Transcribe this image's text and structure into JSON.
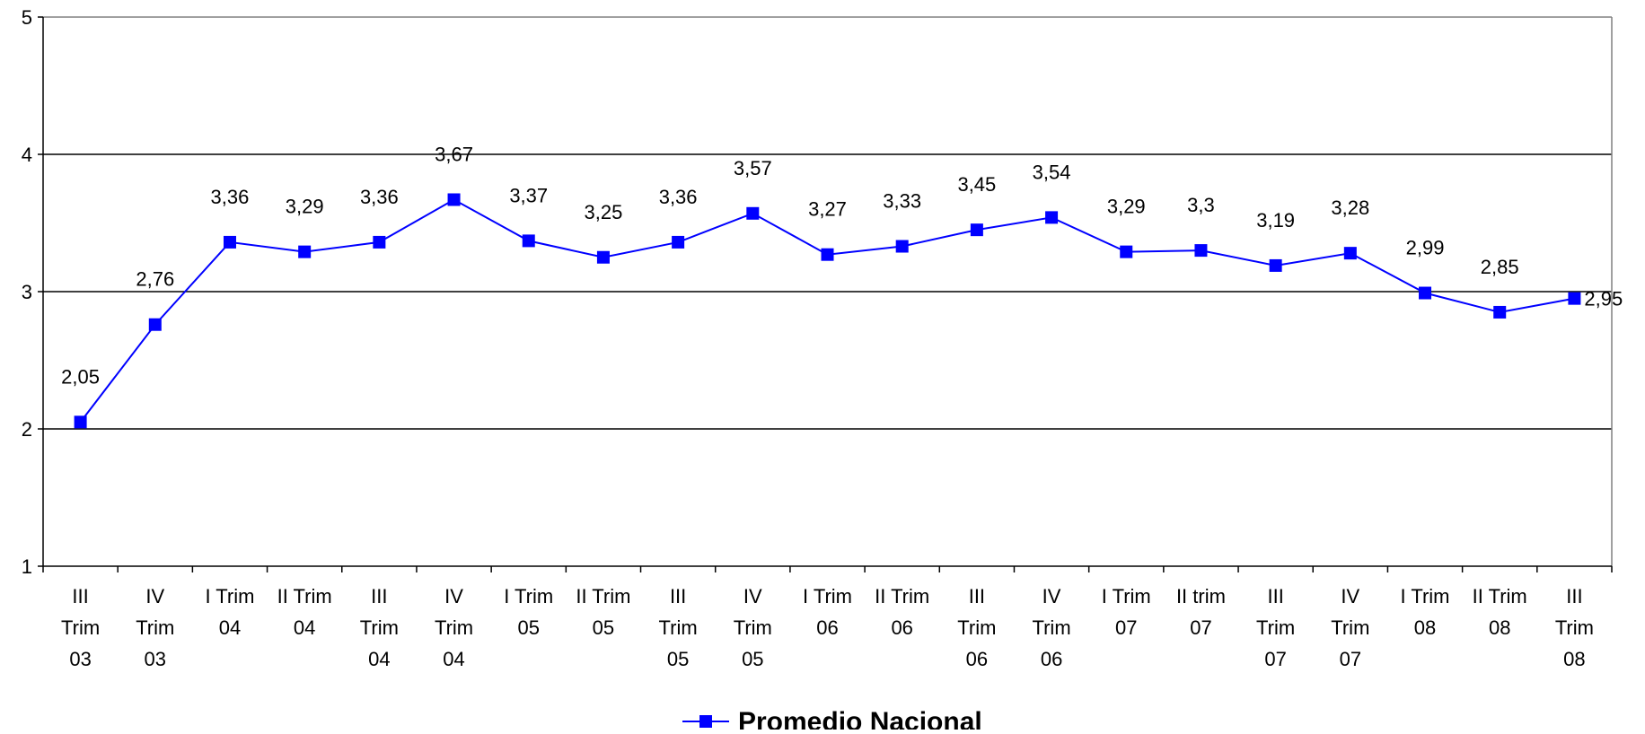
{
  "chart_data": {
    "type": "line",
    "categories": [
      [
        "III",
        "Trim",
        "03"
      ],
      [
        "IV",
        "Trim",
        "03"
      ],
      [
        "I Trim",
        "04"
      ],
      [
        "II Trim",
        "04"
      ],
      [
        "III",
        "Trim",
        "04"
      ],
      [
        "IV",
        "Trim",
        "04"
      ],
      [
        "I Trim",
        "05"
      ],
      [
        "II Trim",
        "05"
      ],
      [
        "III",
        "Trim",
        "05"
      ],
      [
        "IV",
        "Trim",
        "05"
      ],
      [
        "I Trim",
        "06"
      ],
      [
        "II Trim",
        "06"
      ],
      [
        "III",
        "Trim",
        "06"
      ],
      [
        "IV",
        "Trim",
        "06"
      ],
      [
        "I Trim",
        "07"
      ],
      [
        "II trim",
        "07"
      ],
      [
        "III",
        "Trim",
        "07"
      ],
      [
        "IV",
        "Trim",
        "07"
      ],
      [
        "I Trim",
        "08"
      ],
      [
        "II Trim",
        "08"
      ],
      [
        "III",
        "Trim",
        "08"
      ]
    ],
    "series": [
      {
        "name": "Promedio Nacional",
        "color": "#0000ff",
        "marker": "square",
        "values": [
          2.05,
          2.76,
          3.36,
          3.29,
          3.36,
          3.67,
          3.37,
          3.25,
          3.36,
          3.57,
          3.27,
          3.33,
          3.45,
          3.54,
          3.29,
          3.3,
          3.19,
          3.28,
          2.99,
          2.85,
          2.95
        ],
        "labels": [
          "2,05",
          "2,76",
          "3,36",
          "3,29",
          "3,36",
          "3,67",
          "3,37",
          "3,25",
          "3,36",
          "3,57",
          "3,27",
          "3,33",
          "3,45",
          "3,54",
          "3,29",
          "3,3",
          "3,19",
          "3,28",
          "2,99",
          "2,85",
          "2,95"
        ]
      }
    ],
    "yticks": [
      "1",
      "2",
      "3",
      "4",
      "5"
    ],
    "ylim": [
      1,
      5
    ],
    "gridlines": [
      2,
      3,
      4
    ],
    "grid": true,
    "legend_position": "bottom-center",
    "title": "",
    "xlabel": "",
    "ylabel": ""
  }
}
